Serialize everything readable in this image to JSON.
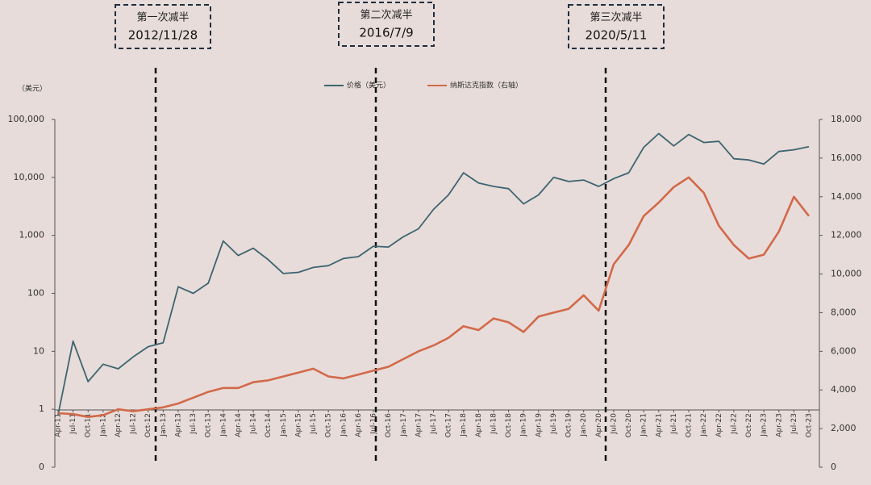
{
  "chart_data": {
    "type": "line",
    "y_axis_label": "（美元）",
    "ylog": true,
    "ylim": [
      0.1,
      100000
    ],
    "yticks": [
      {
        "value": 0.1,
        "label": "0"
      },
      1,
      10,
      100,
      {
        "value": 1000,
        "label": "1,000"
      },
      {
        "value": 10000,
        "label": "10,000"
      },
      {
        "value": 100000,
        "label": "100,000"
      }
    ],
    "y2lim": [
      0,
      18000
    ],
    "y2ticks": [
      0,
      {
        "value": 2000,
        "label": "2,000"
      },
      {
        "value": 4000,
        "label": "4,000"
      },
      {
        "value": 6000,
        "label": "6,000"
      },
      {
        "value": 8000,
        "label": "8,000"
      },
      {
        "value": 10000,
        "label": "10,000"
      },
      {
        "value": 12000,
        "label": "12,000"
      },
      {
        "value": 14000,
        "label": "14,000"
      },
      {
        "value": 16000,
        "label": "16,000"
      },
      {
        "value": 18000,
        "label": "18,000"
      }
    ],
    "categories": [
      "Apr-11",
      "Jul-11",
      "Oct-11",
      "Jan-12",
      "Apr-12",
      "Jul-12",
      "Oct-12",
      "Jan-13",
      "Apr-13",
      "Jul-13",
      "Oct-13",
      "Jan-14",
      "Apr-14",
      "Jul-14",
      "Oct-14",
      "Jan-15",
      "Apr-15",
      "Jul-15",
      "Oct-15",
      "Jan-16",
      "Apr-16",
      "Jul-16",
      "Oct-16",
      "Jan-17",
      "Apr-17",
      "Jul-17",
      "Oct-17",
      "Jan-18",
      "Apr-18",
      "Jul-18",
      "Oct-18",
      "Jan-19",
      "Apr-19",
      "Jul-19",
      "Oct-19",
      "Jan-20",
      "Apr-20",
      "Jul-20",
      "Oct-20",
      "Jan-21",
      "Apr-21",
      "Jul-21",
      "Oct-21",
      "Jan-22",
      "Apr-22",
      "Jul-22",
      "Oct-22",
      "Jan-23",
      "Apr-23",
      "Jul-23",
      "Oct-23"
    ],
    "series": [
      {
        "name": "价格（美元）",
        "color": "#3d6470",
        "axis": "y",
        "values": [
          0.8,
          15,
          3,
          6,
          5,
          8,
          12,
          14,
          130,
          100,
          150,
          800,
          450,
          600,
          380,
          220,
          230,
          280,
          300,
          400,
          430,
          650,
          630,
          950,
          1300,
          2800,
          5000,
          12000,
          8000,
          7000,
          6400,
          3500,
          5000,
          10000,
          8500,
          9000,
          7000,
          9500,
          12000,
          33000,
          57000,
          35000,
          55000,
          40000,
          42000,
          21000,
          20000,
          17000,
          28000,
          30000,
          34000
        ]
      },
      {
        "name": "纳斯达克指数（右轴）",
        "color": "#d2694a",
        "axis": "y2",
        "values": [
          2800,
          2750,
          2600,
          2700,
          3000,
          2900,
          3000,
          3100,
          3300,
          3600,
          3900,
          4100,
          4100,
          4400,
          4500,
          4700,
          4900,
          5100,
          4700,
          4600,
          4800,
          5000,
          5200,
          5600,
          6000,
          6300,
          6700,
          7300,
          7100,
          7700,
          7500,
          7000,
          7800,
          8000,
          8200,
          8900,
          8100,
          10500,
          11500,
          13000,
          13700,
          14500,
          15000,
          14200,
          12500,
          11500,
          10800,
          11000,
          12200,
          14000,
          13000
        ]
      }
    ],
    "annotations": [
      {
        "label": "第一次减半",
        "date": "2012/11/28"
      },
      {
        "label": "第二次减半",
        "date": "2016/7/9"
      },
      {
        "label": "第三次减半",
        "date": "2020/5/11"
      }
    ]
  }
}
